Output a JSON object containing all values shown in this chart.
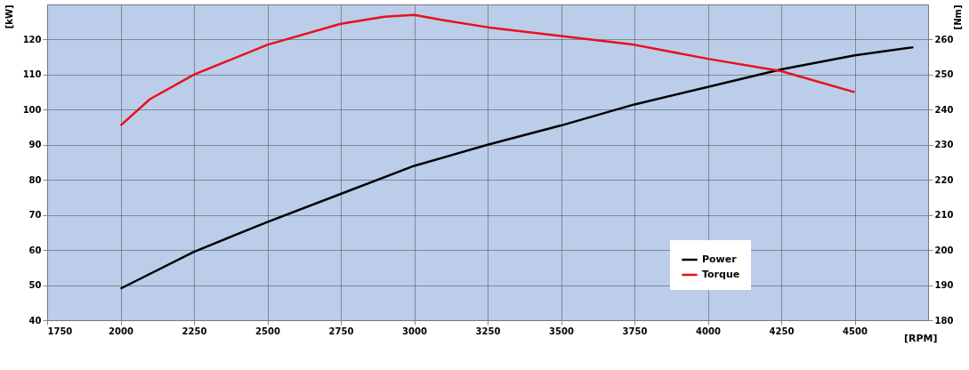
{
  "chart_data": {
    "type": "line",
    "xlabel": "[RPM]",
    "ylabel": "[kW]",
    "y2label": "[Nm]",
    "series": [
      {
        "name": "Power",
        "color": "#000000",
        "x": [
          2000,
          2250,
          2500,
          2750,
          3000,
          3250,
          3500,
          3750,
          4000,
          4250,
          4500,
          4700
        ],
        "values": [
          49,
          59.5,
          68,
          76,
          84,
          90,
          95.5,
          101.5,
          106.5,
          111.5,
          115.5,
          117.8
        ]
      },
      {
        "name": "Torque",
        "color": "#e8101c",
        "axis": "y2",
        "x": [
          2000,
          2100,
          2250,
          2500,
          2750,
          2900,
          3000,
          3100,
          3250,
          3500,
          3750,
          4000,
          4250,
          4500
        ],
        "values": [
          235.5,
          243,
          250,
          258.5,
          264.5,
          266.5,
          267,
          265.5,
          263.5,
          261,
          258.5,
          254.5,
          251,
          245
        ]
      }
    ],
    "xlim": [
      1750,
      4750
    ],
    "xticks": [
      1750,
      2000,
      2250,
      2500,
      2750,
      3000,
      3250,
      3500,
      3750,
      4000,
      4250,
      4500
    ],
    "ylim": [
      40,
      130
    ],
    "yticks": [
      40,
      50,
      60,
      70,
      80,
      90,
      100,
      110,
      120
    ],
    "y2lim": [
      180,
      270
    ],
    "y2ticks": [
      180,
      190,
      200,
      210,
      220,
      230,
      240,
      250,
      260
    ],
    "grid": true,
    "legend": "bottom right",
    "marker": "none",
    "line_style": "solid"
  }
}
